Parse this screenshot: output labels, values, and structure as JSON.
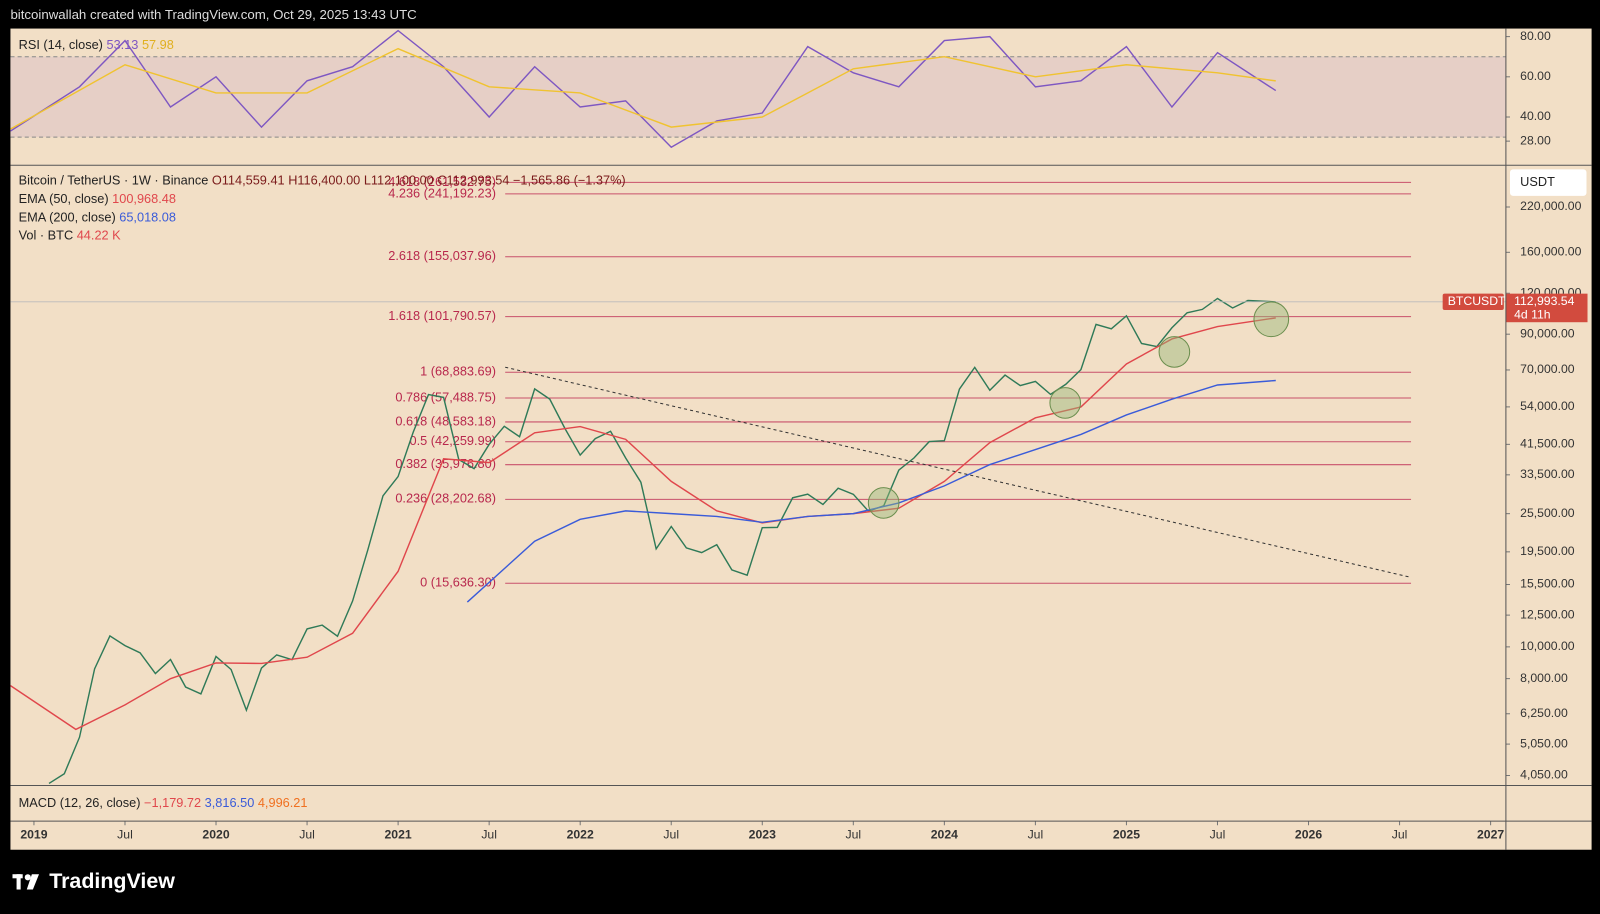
{
  "header": {
    "attribution": "bitcoinwallah created with TradingView.com, Oct 29, 2025 13:43 UTC"
  },
  "footer": {
    "brand": "TradingView"
  },
  "legend": {
    "ohlc": [
      "O114,559.41",
      "H116,400.00",
      "L112,100.00",
      "C112,993.54",
      "−1,565.86 (−1.37%)"
    ],
    "ema50": "100,968.48",
    "ema200": "65,018.08",
    "volume_name": "Vol · BTC",
    "volume": "44.22 K"
  },
  "rsi_legend": {
    "rsi": "53.13",
    "ma": "57.98"
  },
  "macd_legend": {
    "name": "MACD (12, 26, close)",
    "macd": "−1,179.72",
    "signal": "3,816.50",
    "histogram": "4,996.21"
  },
  "currency": "USDT",
  "price_tag": {
    "symbol": "BTCUSDT",
    "price": "112,993.54",
    "countdown": "4d 11h"
  },
  "chart_data": [
    {
      "type": "line",
      "log_scale": true,
      "grid": false,
      "xlim": [
        2018.871,
        2027.084
      ],
      "ylim": [
        3776,
        295000
      ],
      "xticks": [
        2019,
        {
          "value": 2019.5,
          "label": "Jul"
        },
        2020,
        {
          "value": 2020.5,
          "label": "Jul"
        },
        2021,
        {
          "value": 2021.5,
          "label": "Jul"
        },
        2022,
        {
          "value": 2022.5,
          "label": "Jul"
        },
        2023,
        {
          "value": 2023.5,
          "label": "Jul"
        },
        2024,
        {
          "value": 2024.5,
          "label": "Jul"
        },
        2025,
        {
          "value": 2025.5,
          "label": "Jul"
        },
        2026,
        {
          "value": 2026.5,
          "label": "Jul"
        },
        2027
      ],
      "yticks": [
        {
          "value": 220000,
          "label": "220,000.00"
        },
        {
          "value": 160000,
          "label": "160,000.00"
        },
        {
          "value": 120000,
          "label": "120,000.00"
        },
        {
          "value": 90000,
          "label": "90,000.00"
        },
        {
          "value": 70000,
          "label": "70,000.00"
        },
        {
          "value": 54000,
          "label": "54,000.00"
        },
        {
          "value": 41500,
          "label": "41,500.00"
        },
        {
          "value": 33500,
          "label": "33,500.00"
        },
        {
          "value": 25500,
          "label": "25,500.00"
        },
        {
          "value": 19500,
          "label": "19,500.00"
        },
        {
          "value": 15500,
          "label": "15,500.00"
        },
        {
          "value": 12500,
          "label": "12,500.00"
        },
        {
          "value": 10000,
          "label": "10,000.00"
        },
        {
          "value": 8000,
          "label": "8,000.00"
        },
        {
          "value": 6250,
          "label": "6,250.00"
        },
        {
          "value": 5050,
          "label": "5,050.00"
        },
        {
          "value": 4050,
          "label": "4,050.00"
        }
      ],
      "series": [
        {
          "name": "Bitcoin / TetherUS · 1W · Binance",
          "color": "#2f7a58",
          "x": [
            2019.083,
            2019.167,
            2019.25,
            2019.333,
            2019.417,
            2019.5,
            2019.583,
            2019.667,
            2019.75,
            2019.833,
            2019.917,
            2020.0,
            2020.083,
            2020.167,
            2020.25,
            2020.333,
            2020.417,
            2020.5,
            2020.583,
            2020.667,
            2020.75,
            2020.833,
            2020.917,
            2021.0,
            2021.083,
            2021.167,
            2021.25,
            2021.333,
            2021.417,
            2021.5,
            2021.583,
            2021.667,
            2021.75,
            2021.833,
            2021.917,
            2022.0,
            2022.083,
            2022.167,
            2022.25,
            2022.333,
            2022.417,
            2022.5,
            2022.583,
            2022.667,
            2022.75,
            2022.833,
            2022.917,
            2023.0,
            2023.083,
            2023.167,
            2023.25,
            2023.333,
            2023.417,
            2023.5,
            2023.583,
            2023.667,
            2023.75,
            2023.833,
            2023.917,
            2024.0,
            2024.083,
            2024.167,
            2024.25,
            2024.333,
            2024.417,
            2024.5,
            2024.583,
            2024.667,
            2024.75,
            2024.833,
            2024.917,
            2025.0,
            2025.083,
            2025.167,
            2025.25,
            2025.333,
            2025.417,
            2025.5,
            2025.583,
            2025.667,
            2025.82
          ],
          "values": [
            3830,
            4100,
            5300,
            8570,
            10800,
            10090,
            9590,
            8290,
            9150,
            7540,
            7190,
            9350,
            8530,
            6410,
            8620,
            9450,
            9140,
            11350,
            11650,
            10780,
            13800,
            19700,
            28900,
            33100,
            45200,
            58900,
            57700,
            37300,
            35000,
            41500,
            47100,
            43800,
            61300,
            57000,
            46300,
            38500,
            43200,
            45500,
            37700,
            31800,
            19900,
            23300,
            20050,
            19400,
            20500,
            17170,
            16550,
            23100,
            23150,
            28500,
            29250,
            27200,
            30500,
            29200,
            25950,
            26960,
            34650,
            37700,
            42300,
            42600,
            61200,
            71300,
            60700,
            67500,
            62700,
            64600,
            58950,
            63300,
            70200,
            96400,
            93500,
            102400,
            84300,
            82500,
            94200,
            104600,
            107100,
            115700,
            108200,
            114000,
            112993.54
          ]
        },
        {
          "name": "EMA (50, close)",
          "color": "#e0474c",
          "x": [
            2018.871,
            2019.23,
            2019.5,
            2019.75,
            2020.0,
            2020.25,
            2020.5,
            2020.75,
            2021.0,
            2021.25,
            2021.5,
            2021.75,
            2022.0,
            2022.25,
            2022.5,
            2022.75,
            2023.0,
            2023.25,
            2023.5,
            2023.75,
            2024.0,
            2024.25,
            2024.5,
            2024.75,
            2025.0,
            2025.25,
            2025.5,
            2025.82
          ],
          "values": [
            7620,
            5600,
            6650,
            8000,
            8930,
            8900,
            9300,
            11000,
            17000,
            37500,
            36500,
            45000,
            47000,
            43000,
            32000,
            26000,
            23900,
            25000,
            25500,
            26500,
            32000,
            42000,
            50000,
            54000,
            73000,
            87000,
            95000,
            100968.48
          ]
        },
        {
          "name": "EMA (200, close)",
          "color": "#3a5bd9",
          "x": [
            2021.38,
            2021.75,
            2022.0,
            2022.25,
            2022.5,
            2022.75,
            2023.0,
            2023.25,
            2023.5,
            2023.75,
            2024.0,
            2024.25,
            2024.5,
            2024.75,
            2025.0,
            2025.25,
            2025.5,
            2025.82
          ],
          "values": [
            13700,
            21000,
            24500,
            26000,
            25500,
            25000,
            24000,
            25000,
            25500,
            27500,
            31000,
            36000,
            40000,
            44500,
            51000,
            57000,
            63000,
            65018.08
          ]
        }
      ],
      "fib_levels": [
        {
          "value": 261532.75,
          "label": "4.618 (261,532.75)"
        },
        {
          "value": 241192.23,
          "label": "4.236 (241,192.23)"
        },
        {
          "value": 155037.96,
          "label": "2.618 (155,037.96)"
        },
        {
          "value": 101790.57,
          "label": "1.618 (101,790.57)"
        },
        {
          "value": 68883.69,
          "label": "1 (68,883.69)"
        },
        {
          "value": 57488.75,
          "label": "0.786 (57,488.75)"
        },
        {
          "value": 48583.18,
          "label": "0.618 (48,583.18)"
        },
        {
          "value": 42259.99,
          "label": "0.5 (42,259.99)"
        },
        {
          "value": 35976.8,
          "label": "0.382 (35,976.80)"
        },
        {
          "value": 28202.68,
          "label": "0.236 (28,202.68)"
        },
        {
          "value": 15636.3,
          "label": "0 (15,636.30)"
        }
      ]
    },
    {
      "type": "line",
      "grid": false,
      "band": [
        30,
        70
      ],
      "xlim": [
        2018.871,
        2027.084
      ],
      "ylim": [
        16,
        84
      ],
      "yticks": [
        {
          "value": 80,
          "label": "80.00"
        },
        {
          "value": 60,
          "label": "60.00"
        },
        {
          "value": 40,
          "label": "40.00"
        },
        {
          "value": 28,
          "label": "28.00"
        }
      ],
      "series": [
        {
          "name": "RSI (14, close)",
          "color": "#7e57c2",
          "x": [
            2018.871,
            2019.25,
            2019.5,
            2019.75,
            2020.0,
            2020.25,
            2020.5,
            2020.75,
            2021.0,
            2021.25,
            2021.5,
            2021.75,
            2022.0,
            2022.25,
            2022.5,
            2022.75,
            2023.0,
            2023.25,
            2023.5,
            2023.75,
            2024.0,
            2024.25,
            2024.5,
            2024.75,
            2025.0,
            2025.25,
            2025.5,
            2025.82
          ],
          "values": [
            33,
            55,
            78,
            45,
            60,
            35,
            58,
            65,
            83,
            65,
            40,
            65,
            45,
            48,
            25,
            38,
            42,
            75,
            62,
            55,
            78,
            80,
            55,
            58,
            75,
            45,
            72,
            53.13
          ]
        },
        {
          "color": "#f0c330",
          "x": [
            2018.871,
            2019.5,
            2020.0,
            2020.5,
            2021.0,
            2021.5,
            2022.0,
            2022.5,
            2023.0,
            2023.5,
            2024.0,
            2024.5,
            2025.0,
            2025.5,
            2025.82
          ],
          "values": [
            34,
            66,
            52,
            52,
            74,
            55,
            52,
            35,
            40,
            64,
            70,
            60,
            66,
            62,
            57.98
          ]
        }
      ]
    }
  ]
}
